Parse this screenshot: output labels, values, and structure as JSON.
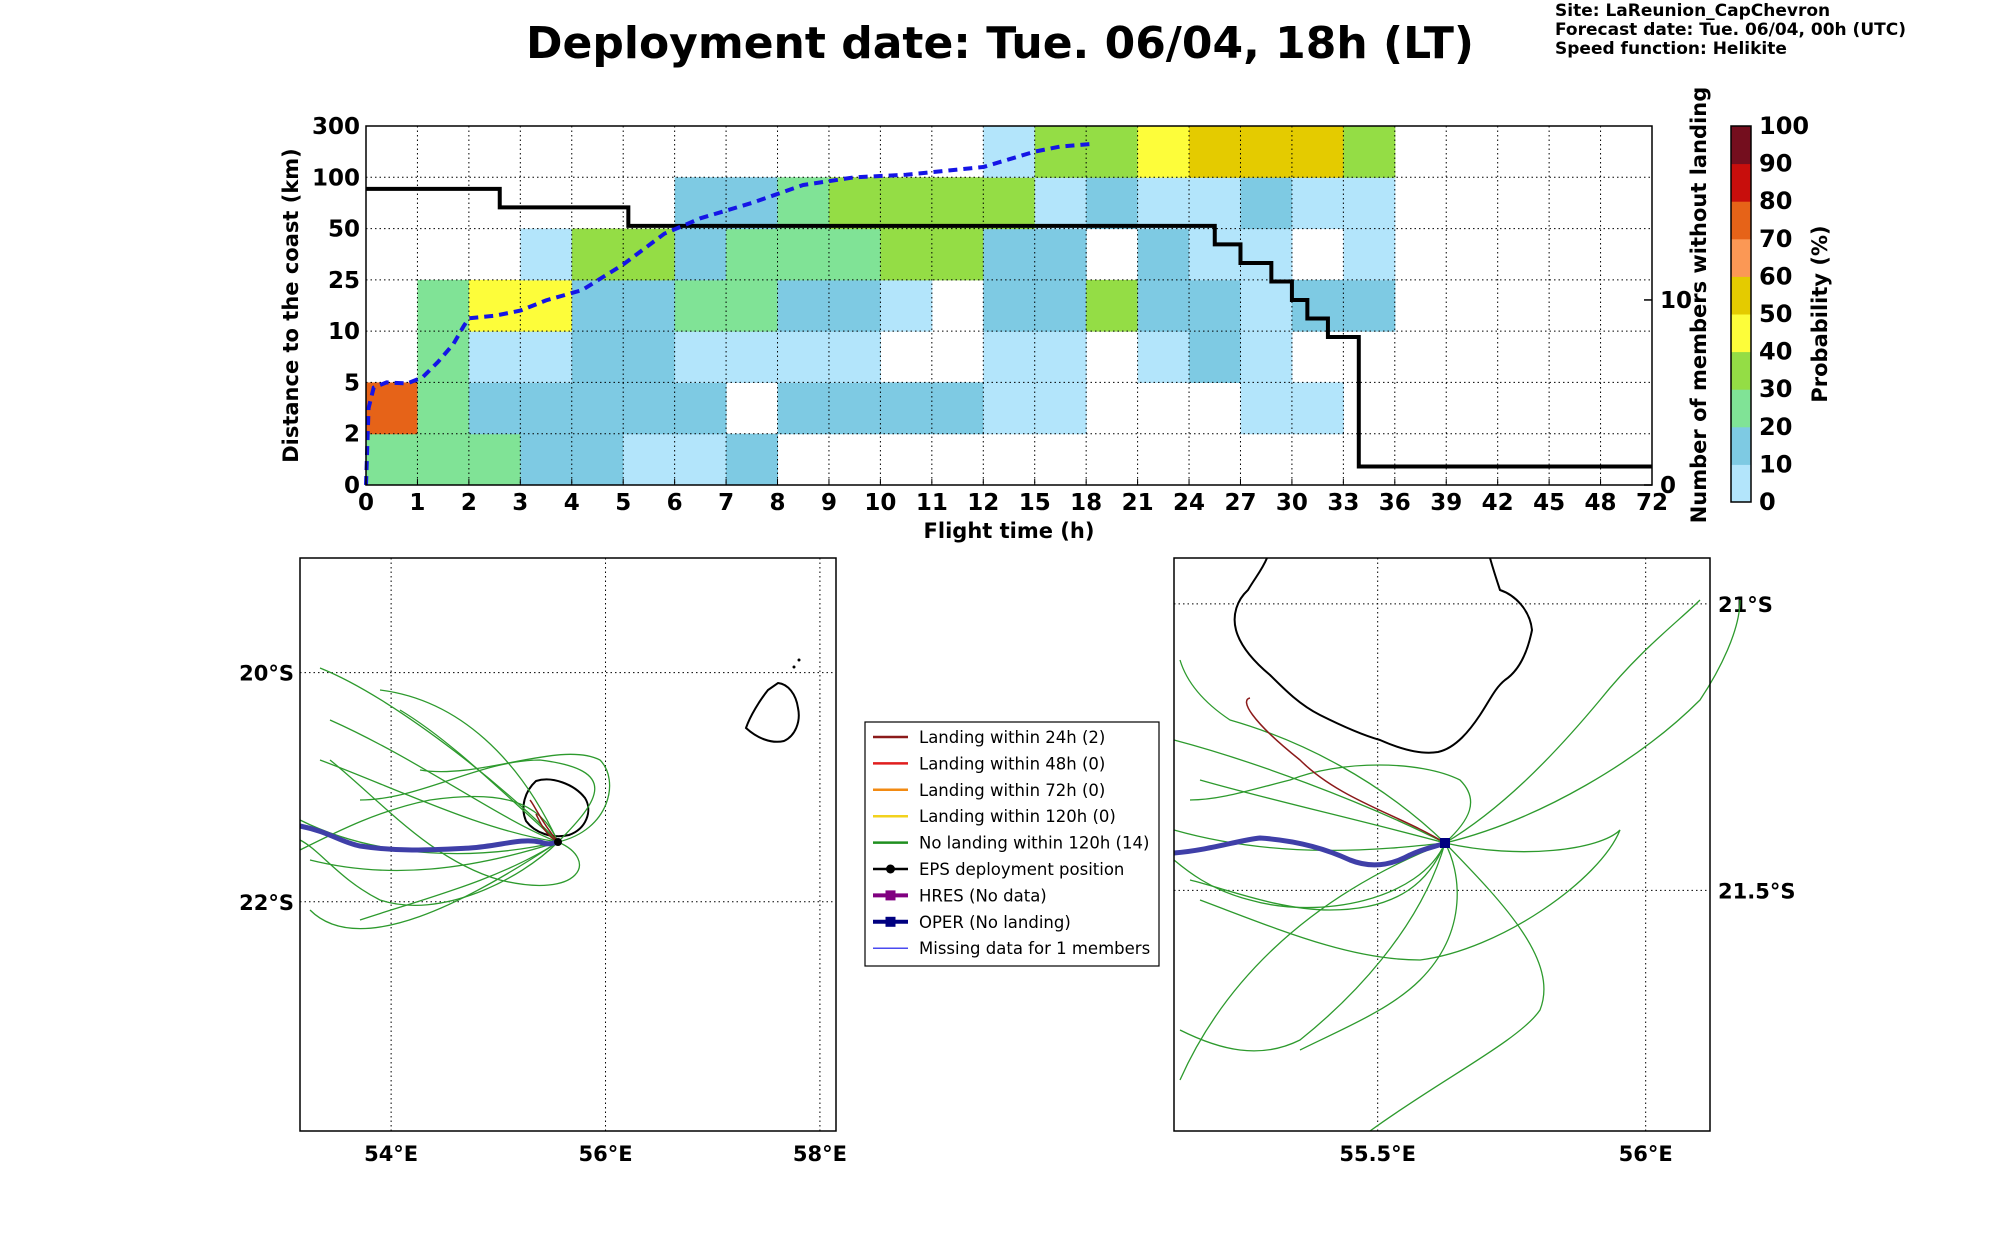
{
  "title": "Deployment date: Tue. 06/04, 18h (LT)",
  "meta": {
    "site": "Site: LaReunion_CapChevron",
    "forecast": "Forecast date: Tue. 06/04, 00h (UTC)",
    "speed": "Speed function: Helikite"
  },
  "chart_data": [
    {
      "type": "heatmap",
      "xlabel": "Flight time (h)",
      "ylabel": "Distance to the coast (km)",
      "y2label": "Number of members without landing",
      "colorbar_label": "Probability (%)",
      "x_ticks": [
        "0",
        "1",
        "2",
        "3",
        "4",
        "5",
        "6",
        "7",
        "8",
        "9",
        "10",
        "11",
        "12",
        "15",
        "18",
        "21",
        "24",
        "27",
        "30",
        "33",
        "36",
        "39",
        "42",
        "45",
        "48",
        "72"
      ],
      "y_ticks": [
        "0",
        "2",
        "5",
        "10",
        "25",
        "50",
        "100",
        "300"
      ],
      "y2_ticks": [
        {
          "label": "0",
          "value": 0
        },
        {
          "label": "10",
          "value": 10
        }
      ],
      "y2_range": [
        0,
        19.4
      ],
      "colorbar": {
        "ticks": [
          "0",
          "10",
          "20",
          "30",
          "40",
          "50",
          "60",
          "70",
          "80",
          "90",
          "100"
        ],
        "colors": [
          "#b3e5fb",
          "#7ecae3",
          "#80e396",
          "#94dd45",
          "#fdfd3a",
          "#e4cb00",
          "#fb9855",
          "#e66318",
          "#c80e0c",
          "#740e1e"
        ]
      },
      "cells": [
        {
          "x": 0,
          "y": 0,
          "p": 20
        },
        {
          "x": 1,
          "y": 0,
          "p": 20
        },
        {
          "x": 2,
          "y": 0,
          "p": 20
        },
        {
          "x": 3,
          "y": 0,
          "p": 10
        },
        {
          "x": 4,
          "y": 0,
          "p": 10
        },
        {
          "x": 5,
          "y": 0,
          "p": 0
        },
        {
          "x": 6,
          "y": 0,
          "p": 0
        },
        {
          "x": 7,
          "y": 0,
          "p": 10
        },
        {
          "x": 0,
          "y": 1,
          "p": 70
        },
        {
          "x": 1,
          "y": 1,
          "p": 20
        },
        {
          "x": 2,
          "y": 1,
          "p": 10
        },
        {
          "x": 3,
          "y": 1,
          "p": 10
        },
        {
          "x": 4,
          "y": 1,
          "p": 10
        },
        {
          "x": 5,
          "y": 1,
          "p": 10
        },
        {
          "x": 6,
          "y": 1,
          "p": 10
        },
        {
          "x": 8,
          "y": 1,
          "p": 10
        },
        {
          "x": 9,
          "y": 1,
          "p": 10
        },
        {
          "x": 10,
          "y": 1,
          "p": 10
        },
        {
          "x": 11,
          "y": 1,
          "p": 10
        },
        {
          "x": 12,
          "y": 1,
          "p": 0
        },
        {
          "x": 13,
          "y": 1,
          "p": 0
        },
        {
          "x": 17,
          "y": 1,
          "p": 0
        },
        {
          "x": 18,
          "y": 1,
          "p": 0
        },
        {
          "x": 1,
          "y": 2,
          "p": 20
        },
        {
          "x": 2,
          "y": 2,
          "p": 0
        },
        {
          "x": 3,
          "y": 2,
          "p": 0
        },
        {
          "x": 4,
          "y": 2,
          "p": 10
        },
        {
          "x": 5,
          "y": 2,
          "p": 10
        },
        {
          "x": 6,
          "y": 2,
          "p": 0
        },
        {
          "x": 7,
          "y": 2,
          "p": 0
        },
        {
          "x": 8,
          "y": 2,
          "p": 0
        },
        {
          "x": 9,
          "y": 2,
          "p": 0
        },
        {
          "x": 12,
          "y": 2,
          "p": 0
        },
        {
          "x": 13,
          "y": 2,
          "p": 0
        },
        {
          "x": 15,
          "y": 2,
          "p": 0
        },
        {
          "x": 16,
          "y": 2,
          "p": 10
        },
        {
          "x": 17,
          "y": 2,
          "p": 0
        },
        {
          "x": 1,
          "y": 3,
          "p": 20
        },
        {
          "x": 2,
          "y": 3,
          "p": 40
        },
        {
          "x": 3,
          "y": 3,
          "p": 40
        },
        {
          "x": 4,
          "y": 3,
          "p": 10
        },
        {
          "x": 5,
          "y": 3,
          "p": 10
        },
        {
          "x": 6,
          "y": 3,
          "p": 20
        },
        {
          "x": 7,
          "y": 3,
          "p": 20
        },
        {
          "x": 8,
          "y": 3,
          "p": 10
        },
        {
          "x": 9,
          "y": 3,
          "p": 10
        },
        {
          "x": 10,
          "y": 3,
          "p": 0
        },
        {
          "x": 12,
          "y": 3,
          "p": 10
        },
        {
          "x": 13,
          "y": 3,
          "p": 10
        },
        {
          "x": 14,
          "y": 3,
          "p": 30
        },
        {
          "x": 15,
          "y": 3,
          "p": 10
        },
        {
          "x": 16,
          "y": 3,
          "p": 10
        },
        {
          "x": 17,
          "y": 3,
          "p": 0
        },
        {
          "x": 18,
          "y": 3,
          "p": 10
        },
        {
          "x": 19,
          "y": 3,
          "p": 10
        },
        {
          "x": 3,
          "y": 4,
          "p": 0
        },
        {
          "x": 4,
          "y": 4,
          "p": 30
        },
        {
          "x": 5,
          "y": 4,
          "p": 30
        },
        {
          "x": 6,
          "y": 4,
          "p": 10
        },
        {
          "x": 7,
          "y": 4,
          "p": 20
        },
        {
          "x": 8,
          "y": 4,
          "p": 20
        },
        {
          "x": 9,
          "y": 4,
          "p": 20
        },
        {
          "x": 10,
          "y": 4,
          "p": 30
        },
        {
          "x": 11,
          "y": 4,
          "p": 30
        },
        {
          "x": 12,
          "y": 4,
          "p": 10
        },
        {
          "x": 13,
          "y": 4,
          "p": 10
        },
        {
          "x": 15,
          "y": 4,
          "p": 10
        },
        {
          "x": 16,
          "y": 4,
          "p": 0
        },
        {
          "x": 17,
          "y": 4,
          "p": 0
        },
        {
          "x": 19,
          "y": 4,
          "p": 0
        },
        {
          "x": 6,
          "y": 5,
          "p": 10
        },
        {
          "x": 7,
          "y": 5,
          "p": 10
        },
        {
          "x": 8,
          "y": 5,
          "p": 20
        },
        {
          "x": 9,
          "y": 5,
          "p": 30
        },
        {
          "x": 10,
          "y": 5,
          "p": 30
        },
        {
          "x": 11,
          "y": 5,
          "p": 30
        },
        {
          "x": 12,
          "y": 5,
          "p": 30
        },
        {
          "x": 13,
          "y": 5,
          "p": 0
        },
        {
          "x": 14,
          "y": 5,
          "p": 10
        },
        {
          "x": 15,
          "y": 5,
          "p": 0
        },
        {
          "x": 16,
          "y": 5,
          "p": 0
        },
        {
          "x": 17,
          "y": 5,
          "p": 10
        },
        {
          "x": 18,
          "y": 5,
          "p": 0
        },
        {
          "x": 19,
          "y": 5,
          "p": 0
        },
        {
          "x": 12,
          "y": 6,
          "p": 0
        },
        {
          "x": 13,
          "y": 6,
          "p": 30
        },
        {
          "x": 14,
          "y": 6,
          "p": 30
        },
        {
          "x": 15,
          "y": 6,
          "p": 40
        },
        {
          "x": 16,
          "y": 6,
          "p": 50
        },
        {
          "x": 17,
          "y": 6,
          "p": 50
        },
        {
          "x": 18,
          "y": 6,
          "p": 50
        },
        {
          "x": 19,
          "y": 6,
          "p": 30
        }
      ],
      "no_landing_members": [
        {
          "x": 0,
          "y": 16
        },
        {
          "x": 2.6,
          "y": 16
        },
        {
          "x": 2.6,
          "y": 15
        },
        {
          "x": 5.1,
          "y": 15
        },
        {
          "x": 5.1,
          "y": 14
        },
        {
          "x": 16.5,
          "y": 14
        },
        {
          "x": 16.5,
          "y": 13
        },
        {
          "x": 17.0,
          "y": 13
        },
        {
          "x": 17.0,
          "y": 12
        },
        {
          "x": 17.6,
          "y": 12
        },
        {
          "x": 17.6,
          "y": 11
        },
        {
          "x": 18.0,
          "y": 11
        },
        {
          "x": 18.0,
          "y": 10
        },
        {
          "x": 18.3,
          "y": 10
        },
        {
          "x": 18.3,
          "y": 9
        },
        {
          "x": 18.7,
          "y": 9
        },
        {
          "x": 18.7,
          "y": 8
        },
        {
          "x": 19.3,
          "y": 8
        },
        {
          "x": 19.3,
          "y": 1
        },
        {
          "x": 25,
          "y": 1
        }
      ],
      "oper_distance_curve": [
        {
          "x": 0,
          "y": 0
        },
        {
          "x": 0.05,
          "y": 1.5
        },
        {
          "x": 0.15,
          "y": 1.9
        },
        {
          "x": 0.4,
          "y": 2.0
        },
        {
          "x": 0.8,
          "y": 1.98
        },
        {
          "x": 1.1,
          "y": 2.1
        },
        {
          "x": 1.4,
          "y": 2.4
        },
        {
          "x": 1.7,
          "y": 2.75
        },
        {
          "x": 1.9,
          "y": 3.1
        },
        {
          "x": 2.0,
          "y": 3.25
        },
        {
          "x": 2.5,
          "y": 3.3
        },
        {
          "x": 3.0,
          "y": 3.4
        },
        {
          "x": 3.5,
          "y": 3.6
        },
        {
          "x": 4.2,
          "y": 3.8
        },
        {
          "x": 5.0,
          "y": 4.3
        },
        {
          "x": 5.8,
          "y": 4.9
        },
        {
          "x": 6.5,
          "y": 5.2
        },
        {
          "x": 7.5,
          "y": 5.5
        },
        {
          "x": 8.5,
          "y": 5.85
        },
        {
          "x": 9.5,
          "y": 6.0
        },
        {
          "x": 10.5,
          "y": 6.05
        },
        {
          "x": 11.5,
          "y": 6.15
        },
        {
          "x": 12.0,
          "y": 6.2
        },
        {
          "x": 12.5,
          "y": 6.35
        },
        {
          "x": 13.0,
          "y": 6.5
        },
        {
          "x": 13.5,
          "y": 6.6
        },
        {
          "x": 14.1,
          "y": 6.65
        }
      ]
    },
    {
      "type": "map",
      "x_ticks": [
        "54°E",
        "56°E",
        "58°E"
      ],
      "y_ticks": [
        "20°S",
        "22°S"
      ],
      "x_range": [
        53.15,
        58.15
      ],
      "y_range": [
        -19.0,
        -24.0
      ],
      "x_tick_values": [
        54,
        56,
        58
      ],
      "y_tick_values": [
        -20,
        -22
      ]
    },
    {
      "type": "map",
      "x_ticks": [
        "55.5°E",
        "56°E"
      ],
      "y_ticks": [
        "21°S",
        "21.5°S"
      ],
      "x_range": [
        55.12,
        56.12
      ],
      "y_range": [
        -20.92,
        -21.92
      ],
      "x_tick_values": [
        55.5,
        56
      ],
      "y_tick_values": [
        -21,
        -21.5
      ]
    }
  ],
  "legend": {
    "items": [
      {
        "label": "Landing within 24h (2)",
        "color": "#8b1a1a",
        "kind": "line"
      },
      {
        "label": "Landing within 48h (0)",
        "color": "#e01e1e",
        "kind": "line"
      },
      {
        "label": "Landing within 72h (0)",
        "color": "#f28a12",
        "kind": "line"
      },
      {
        "label": "Landing within 120h (0)",
        "color": "#f2d21e",
        "kind": "line"
      },
      {
        "label": "No landing within 120h (14)",
        "color": "#1f8f1f",
        "kind": "line"
      },
      {
        "label": "EPS deployment position",
        "color": "#000000",
        "kind": "dot"
      },
      {
        "label": "HRES (No data)",
        "color": "#800080",
        "kind": "square"
      },
      {
        "label": "OPER (No landing)",
        "color": "#000080",
        "kind": "square"
      },
      {
        "label": "Missing data for 1 members",
        "color": "#4a4af0",
        "kind": "thin"
      }
    ]
  }
}
